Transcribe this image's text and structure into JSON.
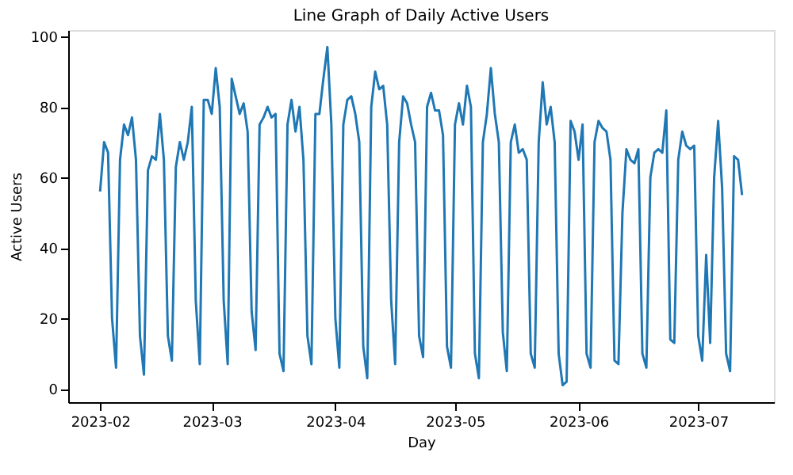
{
  "chart_data": {
    "type": "line",
    "title": "Line Graph of Daily Active Users",
    "xlabel": "Day",
    "ylabel": "Active Users",
    "x": [
      "2023-02-01",
      "2023-02-02",
      "2023-02-03",
      "2023-02-04",
      "2023-02-05",
      "2023-02-06",
      "2023-02-07",
      "2023-02-08",
      "2023-02-09",
      "2023-02-10",
      "2023-02-11",
      "2023-02-12",
      "2023-02-13",
      "2023-02-14",
      "2023-02-15",
      "2023-02-16",
      "2023-02-17",
      "2023-02-18",
      "2023-02-19",
      "2023-02-20",
      "2023-02-21",
      "2023-02-22",
      "2023-02-23",
      "2023-02-24",
      "2023-02-25",
      "2023-02-26",
      "2023-02-27",
      "2023-02-28",
      "2023-03-01",
      "2023-03-02",
      "2023-03-03",
      "2023-03-04",
      "2023-03-05",
      "2023-03-06",
      "2023-03-07",
      "2023-03-08",
      "2023-03-09",
      "2023-03-10",
      "2023-03-11",
      "2023-03-12",
      "2023-03-13",
      "2023-03-14",
      "2023-03-15",
      "2023-03-16",
      "2023-03-17",
      "2023-03-18",
      "2023-03-19",
      "2023-03-20",
      "2023-03-21",
      "2023-03-22",
      "2023-03-23",
      "2023-03-24",
      "2023-03-25",
      "2023-03-26",
      "2023-03-27",
      "2023-03-28",
      "2023-03-29",
      "2023-03-30",
      "2023-03-31",
      "2023-04-01",
      "2023-04-02",
      "2023-04-03",
      "2023-04-04",
      "2023-04-05",
      "2023-04-06",
      "2023-04-07",
      "2023-04-08",
      "2023-04-09",
      "2023-04-10",
      "2023-04-11",
      "2023-04-12",
      "2023-04-13",
      "2023-04-14",
      "2023-04-15",
      "2023-04-16",
      "2023-04-17",
      "2023-04-18",
      "2023-04-19",
      "2023-04-20",
      "2023-04-21",
      "2023-04-22",
      "2023-04-23",
      "2023-04-24",
      "2023-04-25",
      "2023-04-26",
      "2023-04-27",
      "2023-04-28",
      "2023-04-29",
      "2023-04-30",
      "2023-05-01",
      "2023-05-02",
      "2023-05-03",
      "2023-05-04",
      "2023-05-05",
      "2023-05-06",
      "2023-05-07",
      "2023-05-08",
      "2023-05-09",
      "2023-05-10",
      "2023-05-11",
      "2023-05-12",
      "2023-05-13",
      "2023-05-14",
      "2023-05-15",
      "2023-05-16",
      "2023-05-17",
      "2023-05-18",
      "2023-05-19",
      "2023-05-20",
      "2023-05-21",
      "2023-05-22",
      "2023-05-23",
      "2023-05-24",
      "2023-05-25",
      "2023-05-26",
      "2023-05-27",
      "2023-05-28",
      "2023-05-29",
      "2023-05-30",
      "2023-05-31",
      "2023-06-01",
      "2023-06-02",
      "2023-06-03",
      "2023-06-04",
      "2023-06-05",
      "2023-06-06",
      "2023-06-07",
      "2023-06-08",
      "2023-06-09",
      "2023-06-10",
      "2023-06-11",
      "2023-06-12",
      "2023-06-13",
      "2023-06-14",
      "2023-06-15",
      "2023-06-16",
      "2023-06-17",
      "2023-06-18",
      "2023-06-19",
      "2023-06-20",
      "2023-06-21",
      "2023-06-22",
      "2023-06-23",
      "2023-06-24",
      "2023-06-25",
      "2023-06-26",
      "2023-06-27",
      "2023-06-28",
      "2023-06-29",
      "2023-06-30",
      "2023-07-01",
      "2023-07-02",
      "2023-07-03",
      "2023-07-04",
      "2023-07-05",
      "2023-07-06",
      "2023-07-07",
      "2023-07-08",
      "2023-07-09",
      "2023-07-10",
      "2023-07-11",
      "2023-07-12"
    ],
    "series": [
      {
        "color": "#1f77b4",
        "values": [
          56,
          70,
          67,
          20,
          6,
          65,
          75,
          72,
          77,
          65,
          15,
          4,
          62,
          66,
          65,
          78,
          65,
          15,
          8,
          63,
          70,
          65,
          70,
          80,
          25,
          7,
          82,
          82,
          78,
          91,
          80,
          25,
          7,
          88,
          83,
          78,
          81,
          73,
          22,
          11,
          75,
          77,
          80,
          77,
          78,
          10,
          5,
          75,
          82,
          73,
          80,
          65,
          15,
          7,
          78,
          78,
          88,
          97,
          75,
          20,
          6,
          75,
          82,
          83,
          78,
          70,
          12,
          3,
          80,
          90,
          85,
          86,
          75,
          25,
          7,
          70,
          83,
          81,
          75,
          70,
          15,
          9,
          80,
          84,
          79,
          79,
          72,
          12,
          6,
          75,
          81,
          75,
          86,
          80,
          10,
          3,
          70,
          78,
          91,
          78,
          70,
          16,
          5,
          70,
          75,
          67,
          68,
          65,
          10,
          6,
          70,
          87,
          75,
          80,
          70,
          10,
          1,
          2,
          76,
          73,
          65,
          75,
          10,
          6,
          70,
          76,
          74,
          73,
          65,
          8,
          7,
          50,
          68,
          65,
          64,
          68,
          10,
          6,
          60,
          67,
          68,
          67,
          79,
          14,
          13,
          65,
          73,
          69,
          68,
          69,
          15,
          8,
          38,
          13,
          60,
          76,
          57,
          10,
          5,
          66,
          65,
          55
        ]
      }
    ],
    "xlim": [
      "2023-01-24",
      "2023-07-20"
    ],
    "ylim": [
      -3.8,
      101.8
    ],
    "xticks": [
      {
        "value": "2023-02-01",
        "label": "2023-02"
      },
      {
        "value": "2023-03-01",
        "label": "2023-03"
      },
      {
        "value": "2023-04-01",
        "label": "2023-04"
      },
      {
        "value": "2023-05-01",
        "label": "2023-05"
      },
      {
        "value": "2023-06-01",
        "label": "2023-06"
      },
      {
        "value": "2023-07-01",
        "label": "2023-07"
      }
    ],
    "yticks": [
      0,
      20,
      40,
      60,
      80,
      100
    ],
    "grid": false,
    "marker": "none",
    "line_style": "solid"
  }
}
